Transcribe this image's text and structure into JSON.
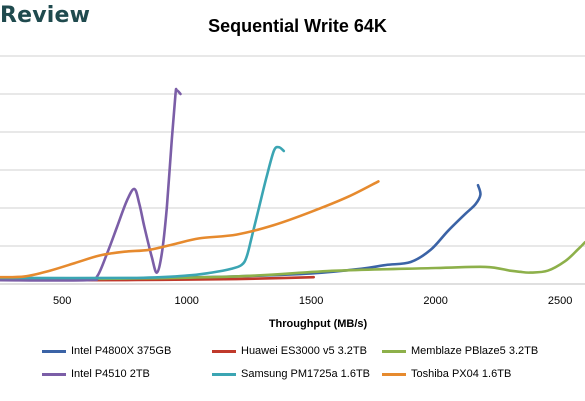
{
  "header": {
    "brand": "Review"
  },
  "chart_data": {
    "type": "line",
    "title": "Sequential Write 64K",
    "xlabel": "Throughput (MB/s)",
    "ylabel": "",
    "xlim": [
      250,
      2600
    ],
    "ylim": [
      0,
      60
    ],
    "x_ticks": [
      "500",
      "1000",
      "1500",
      "2000",
      "2500"
    ],
    "grid": "horizontal",
    "legend_position": "bottom",
    "series": [
      {
        "name": "Intel P4800X 375GB",
        "color": "#3b63a6",
        "x": [
          250,
          600,
          900,
          1200,
          1500,
          1700,
          1800,
          1900,
          1980,
          2050,
          2120,
          2160,
          2180,
          2170
        ],
        "y": [
          1.2,
          1.2,
          1.6,
          2.0,
          2.8,
          4.0,
          5.0,
          5.8,
          9.0,
          14.0,
          18.5,
          21.0,
          23.5,
          26.0
        ]
      },
      {
        "name": "Huawei ES3000 v5 3.2TB",
        "color": "#c0392b",
        "x": [
          250,
          600,
          900,
          1200,
          1400,
          1510
        ],
        "y": [
          1.0,
          1.0,
          1.1,
          1.3,
          1.6,
          1.8
        ]
      },
      {
        "name": "Memblaze PBlaze5 3.2TB",
        "color": "#8db04a",
        "x": [
          250,
          700,
          1200,
          1600,
          2000,
          2200,
          2300,
          2340,
          2380,
          2450,
          2520,
          2570,
          2600
        ],
        "y": [
          1.4,
          1.4,
          2.0,
          3.5,
          4.2,
          4.5,
          3.5,
          3.2,
          3.0,
          3.5,
          6.0,
          9.0,
          11.0
        ]
      },
      {
        "name": "Intel P4510 2TB",
        "color": "#7b5ea7",
        "x": [
          250,
          600,
          640,
          680,
          720,
          760,
          790,
          810,
          830,
          860,
          880,
          900,
          920,
          940,
          955,
          960,
          975
        ],
        "y": [
          1.0,
          1.0,
          2.0,
          8.0,
          15.0,
          22.0,
          25.0,
          21.0,
          15.0,
          7.0,
          3.0,
          8.0,
          20.0,
          38.0,
          50.0,
          51.0,
          50.0
        ]
      },
      {
        "name": "Samsung PM1725a 1.6TB",
        "color": "#3ba5b3",
        "x": [
          250,
          800,
          1000,
          1100,
          1180,
          1220,
          1240,
          1260,
          1290,
          1320,
          1350,
          1370,
          1390
        ],
        "y": [
          1.6,
          1.6,
          2.2,
          3.0,
          4.0,
          5.0,
          7.0,
          12.0,
          20.0,
          28.0,
          35.0,
          36.0,
          35.0
        ]
      },
      {
        "name": "Toshiba PX04 1.6TB",
        "color": "#e68a2e",
        "x": [
          250,
          350,
          450,
          550,
          650,
          750,
          850,
          950,
          1050,
          1200,
          1350,
          1500,
          1650,
          1770
        ],
        "y": [
          1.8,
          2.0,
          3.5,
          5.5,
          7.5,
          8.5,
          9.0,
          10.5,
          12.0,
          13.0,
          15.5,
          19.0,
          23.0,
          27.0
        ]
      }
    ]
  }
}
